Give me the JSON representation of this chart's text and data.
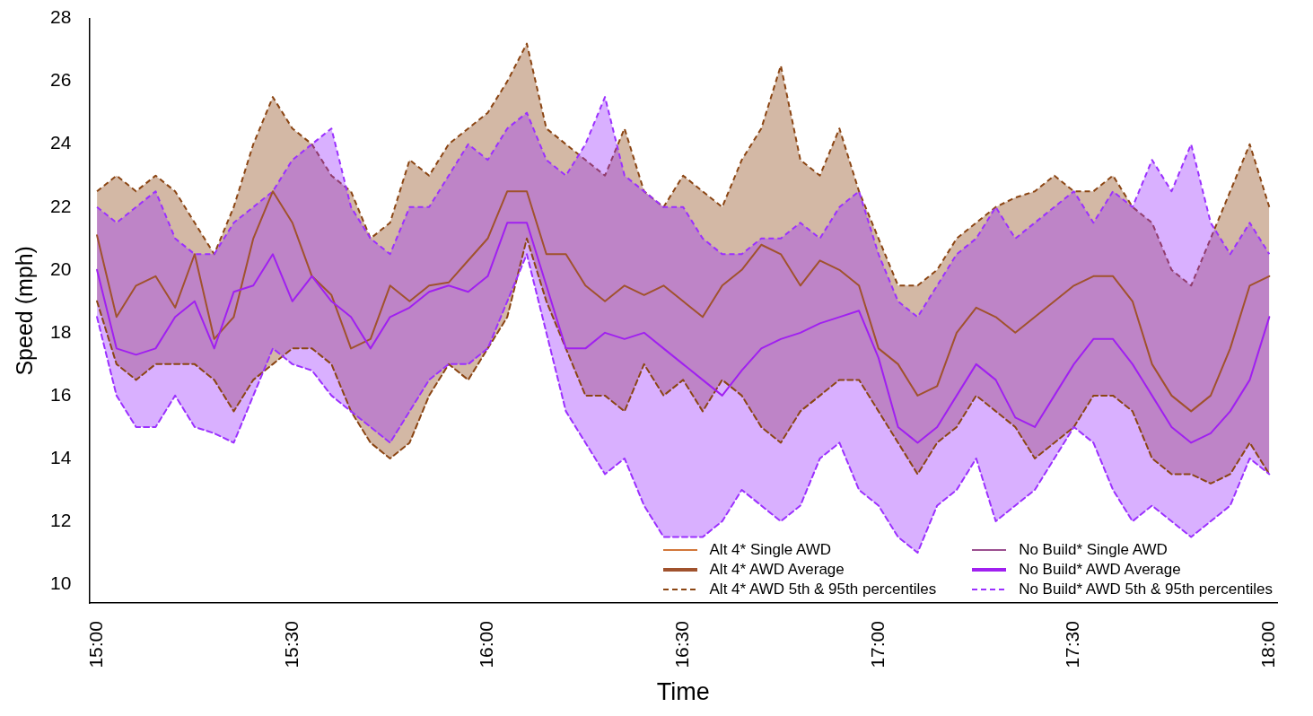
{
  "chart_data": {
    "type": "line",
    "xlabel": "Time",
    "ylabel": "Speed (mph)",
    "x": [
      15,
      15.05,
      15.1,
      15.15,
      15.2,
      15.25,
      15.3,
      15.35,
      15.4,
      15.45,
      15.5,
      15.55,
      15.6,
      15.65,
      15.7,
      15.75,
      15.8,
      15.85,
      15.9,
      15.95,
      16,
      16.05,
      16.1,
      16.15,
      16.2,
      16.25,
      16.3,
      16.35,
      16.4,
      16.45,
      16.5,
      16.55,
      16.6,
      16.65,
      16.7,
      16.75,
      16.8,
      16.85,
      16.9,
      16.95,
      17,
      17.05,
      17.1,
      17.15,
      17.2,
      17.25,
      17.3,
      17.35,
      17.4,
      17.45,
      17.5,
      17.55,
      17.6,
      17.65,
      17.7,
      17.75,
      17.8,
      17.85,
      17.9,
      17.95,
      18
    ],
    "xlim": [
      14.98,
      18.02
    ],
    "xticks": [
      {
        "value": 15,
        "label": "15:00"
      },
      {
        "value": 15.5,
        "label": "15:30"
      },
      {
        "value": 16,
        "label": "16:00"
      },
      {
        "value": 16.5,
        "label": "16:30"
      },
      {
        "value": 17,
        "label": "17:00"
      },
      {
        "value": 17.5,
        "label": "17:30"
      },
      {
        "value": 18,
        "label": "18:00"
      }
    ],
    "ylim": [
      9.4,
      28
    ],
    "yticks": [
      10,
      12,
      14,
      16,
      18,
      20,
      22,
      24,
      26,
      28
    ],
    "grid": false,
    "legend": "bottom right",
    "series": [
      {
        "name": "Alt 4* Single AWD",
        "type": "line",
        "color": "#d2773a",
        "values": [
          null,
          null,
          null,
          null,
          null,
          null,
          null,
          null,
          null,
          null,
          null,
          null,
          null,
          null,
          null,
          null,
          null,
          null,
          null,
          null,
          null,
          null,
          null,
          null,
          null,
          null,
          null,
          null,
          null,
          null,
          null,
          null,
          null,
          null,
          null,
          null,
          null,
          null,
          null,
          null,
          null,
          null,
          null,
          null,
          null,
          null,
          null,
          null,
          null,
          null,
          null,
          null,
          null,
          null,
          null,
          null,
          null,
          null,
          null,
          null,
          null
        ]
      },
      {
        "name": "Alt 4* AWD Average",
        "type": "line",
        "color": "#a0522d",
        "values": [
          21.1,
          18.5,
          19.5,
          19.8,
          18.8,
          20.5,
          17.8,
          18.5,
          21,
          22.5,
          21.5,
          19.8,
          19.2,
          17.5,
          17.8,
          19.5,
          19,
          19.5,
          19.6,
          20.3,
          21,
          22.5,
          22.5,
          20.5,
          20.5,
          19.5,
          19,
          19.5,
          19.2,
          19.5,
          19,
          18.5,
          19.5,
          20,
          20.8,
          20.5,
          19.5,
          20.3,
          20,
          19.5,
          17.5,
          17,
          16,
          16.3,
          18,
          18.8,
          18.5,
          18,
          18.5,
          19,
          19.5,
          19.8,
          19.8,
          19,
          17,
          16,
          15.5,
          16,
          17.5,
          19.5,
          19.8
        ]
      },
      {
        "name": "Alt 4* AWD 5th & 95th percentiles",
        "type": "area",
        "line_style": "dashed",
        "color": "#8b4513",
        "values": [
          22.5,
          23,
          22.5,
          23,
          22.5,
          21.5,
          20.5,
          22,
          24,
          25.5,
          24.5,
          24,
          23,
          22.5,
          21,
          21.5,
          23.5,
          23,
          24,
          24.5,
          25,
          26,
          27.2,
          24.5,
          24,
          23.5,
          23,
          24.5,
          22.5,
          22,
          23,
          22.5,
          22,
          23.5,
          24.5,
          26.5,
          23.5,
          23,
          24.5,
          22.5,
          21,
          19.5,
          19.5,
          20,
          21,
          21.5,
          22,
          22.3,
          22.5,
          23,
          22.5,
          22.5,
          23,
          22,
          21.5,
          20,
          19.5,
          21,
          22.5,
          24,
          22
        ]
      },
      {
        "type": "line",
        "line_style": "dashed",
        "color": "#8b4513",
        "values": [
          19,
          17,
          16.5,
          17,
          17,
          17,
          16.5,
          15.5,
          16.5,
          17,
          17.5,
          17.5,
          17,
          15.5,
          14.5,
          14,
          14.5,
          16,
          17,
          16.5,
          17.5,
          18.5,
          21,
          19,
          17.5,
          16,
          16,
          15.5,
          17,
          16,
          16.5,
          15.5,
          16.5,
          16,
          15,
          14.5,
          15.5,
          16,
          16.5,
          16.5,
          15.5,
          14.5,
          13.5,
          14.5,
          15,
          16,
          15.5,
          15,
          14,
          14.5,
          15,
          16,
          16,
          15.5,
          14,
          13.5,
          13.5,
          13.2,
          13.5,
          14.5,
          13.5
        ]
      },
      {
        "name": "No Build* Single AWD",
        "type": "line",
        "color": "#9b4f8f",
        "values": [
          null,
          null,
          null,
          null,
          null,
          null,
          null,
          null,
          null,
          null,
          null,
          null,
          null,
          null,
          null,
          null,
          null,
          null,
          null,
          null,
          null,
          null,
          null,
          null,
          null,
          null,
          null,
          null,
          null,
          null,
          null,
          null,
          null,
          null,
          null,
          null,
          null,
          null,
          null,
          null,
          null,
          null,
          null,
          null,
          null,
          null,
          null,
          null,
          null,
          null,
          null,
          null,
          null,
          null,
          null,
          null,
          null,
          null,
          null,
          null,
          null
        ]
      },
      {
        "name": "No Build* AWD Average",
        "type": "line",
        "color": "#a020f0",
        "values": [
          20,
          17.5,
          17.3,
          17.5,
          18.5,
          19,
          17.5,
          19.3,
          19.5,
          20.5,
          19,
          19.8,
          19,
          18.5,
          17.5,
          18.5,
          18.8,
          19.3,
          19.5,
          19.3,
          19.8,
          21.5,
          21.5,
          19.5,
          17.5,
          17.5,
          18,
          17.8,
          18,
          17.5,
          17,
          16.5,
          16,
          16.8,
          17.5,
          17.8,
          18,
          18.3,
          18.5,
          18.7,
          17.2,
          15,
          14.5,
          15,
          16,
          17,
          16.5,
          15.3,
          15,
          16,
          17,
          17.8,
          17.8,
          17,
          16,
          15,
          14.5,
          14.8,
          15.5,
          16.5,
          18.5
        ]
      },
      {
        "name": "No Build* AWD 5th & 95th percentiles",
        "type": "area",
        "line_style": "dashed",
        "color": "#9b30ff",
        "values": [
          22,
          21.5,
          22,
          22.5,
          21,
          20.5,
          20.5,
          21.5,
          22,
          22.5,
          23.5,
          24,
          24.5,
          22,
          21,
          20.5,
          22,
          22,
          23,
          24,
          23.5,
          24.5,
          25,
          23.5,
          23,
          24,
          25.5,
          23,
          22.5,
          22,
          22,
          21,
          20.5,
          20.5,
          21,
          21,
          21.5,
          21,
          22,
          22.5,
          20.5,
          19,
          18.5,
          19.5,
          20.5,
          21,
          22,
          21,
          21.5,
          22,
          22.5,
          21.5,
          22.5,
          22,
          23.5,
          22.5,
          24,
          21.5,
          20.5,
          21.5,
          20.5
        ]
      },
      {
        "type": "line",
        "line_style": "dashed",
        "color": "#9b30ff",
        "values": [
          18.5,
          16,
          15,
          15,
          16,
          15,
          14.8,
          14.5,
          16,
          17.5,
          17,
          16.8,
          16,
          15.5,
          15,
          14.5,
          15.5,
          16.5,
          17,
          17,
          17.5,
          19,
          20.5,
          18,
          15.5,
          14.5,
          13.5,
          14,
          12.5,
          11.5,
          11.5,
          11.5,
          12,
          13,
          12.5,
          12,
          12.5,
          14,
          14.5,
          13,
          12.5,
          11.5,
          11,
          12.5,
          13,
          14,
          12,
          12.5,
          13,
          14,
          15,
          14.5,
          13,
          12,
          12.5,
          12,
          11.5,
          12,
          12.5,
          14,
          13.5
        ]
      }
    ]
  }
}
